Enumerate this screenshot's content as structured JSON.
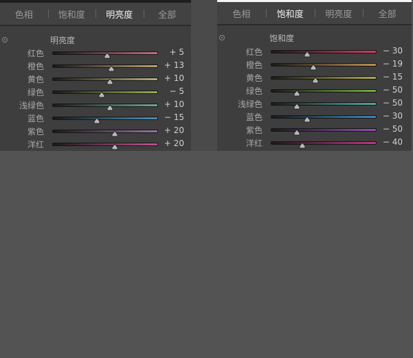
{
  "tabs": [
    "色相",
    "饱和度",
    "明亮度",
    "全部"
  ],
  "panels": [
    {
      "active_tab": 2,
      "section": "明亮度",
      "sliders": [
        {
          "label": "红色",
          "value": 5,
          "display": "+ 5",
          "color": "#c07080"
        },
        {
          "label": "橙色",
          "value": 13,
          "display": "+ 13",
          "color": "#c0a070"
        },
        {
          "label": "黄色",
          "value": 10,
          "display": "+ 10",
          "color": "#b8b080"
        },
        {
          "label": "绿色",
          "value": -5,
          "display": "− 5",
          "color": "#90b050"
        },
        {
          "label": "浅绿色",
          "value": 10,
          "display": "+ 10",
          "color": "#70a898"
        },
        {
          "label": "蓝色",
          "value": -15,
          "display": "− 15",
          "color": "#4890b8"
        },
        {
          "label": "紫色",
          "value": 20,
          "display": "+ 20",
          "color": "#a070a8"
        },
        {
          "label": "洋红",
          "value": 20,
          "display": "+ 20",
          "color": "#c05090"
        }
      ]
    },
    {
      "active_tab": 1,
      "section": "饱和度",
      "sliders": [
        {
          "label": "红色",
          "value": -30,
          "display": "− 30",
          "color": "#d04060"
        },
        {
          "label": "橙色",
          "value": -19,
          "display": "− 19",
          "color": "#c09050"
        },
        {
          "label": "黄色",
          "value": -15,
          "display": "− 15",
          "color": "#b0a850"
        },
        {
          "label": "绿色",
          "value": -50,
          "display": "− 50",
          "color": "#70b040"
        },
        {
          "label": "浅绿色",
          "value": -50,
          "display": "− 50",
          "color": "#50a898"
        },
        {
          "label": "蓝色",
          "value": -30,
          "display": "− 30",
          "color": "#3a88c0"
        },
        {
          "label": "紫色",
          "value": -50,
          "display": "− 50",
          "color": "#9050b0"
        },
        {
          "label": "洋红",
          "value": -40,
          "display": "− 40",
          "color": "#c03880"
        }
      ]
    }
  ],
  "slider_range": [
    -100,
    100
  ]
}
